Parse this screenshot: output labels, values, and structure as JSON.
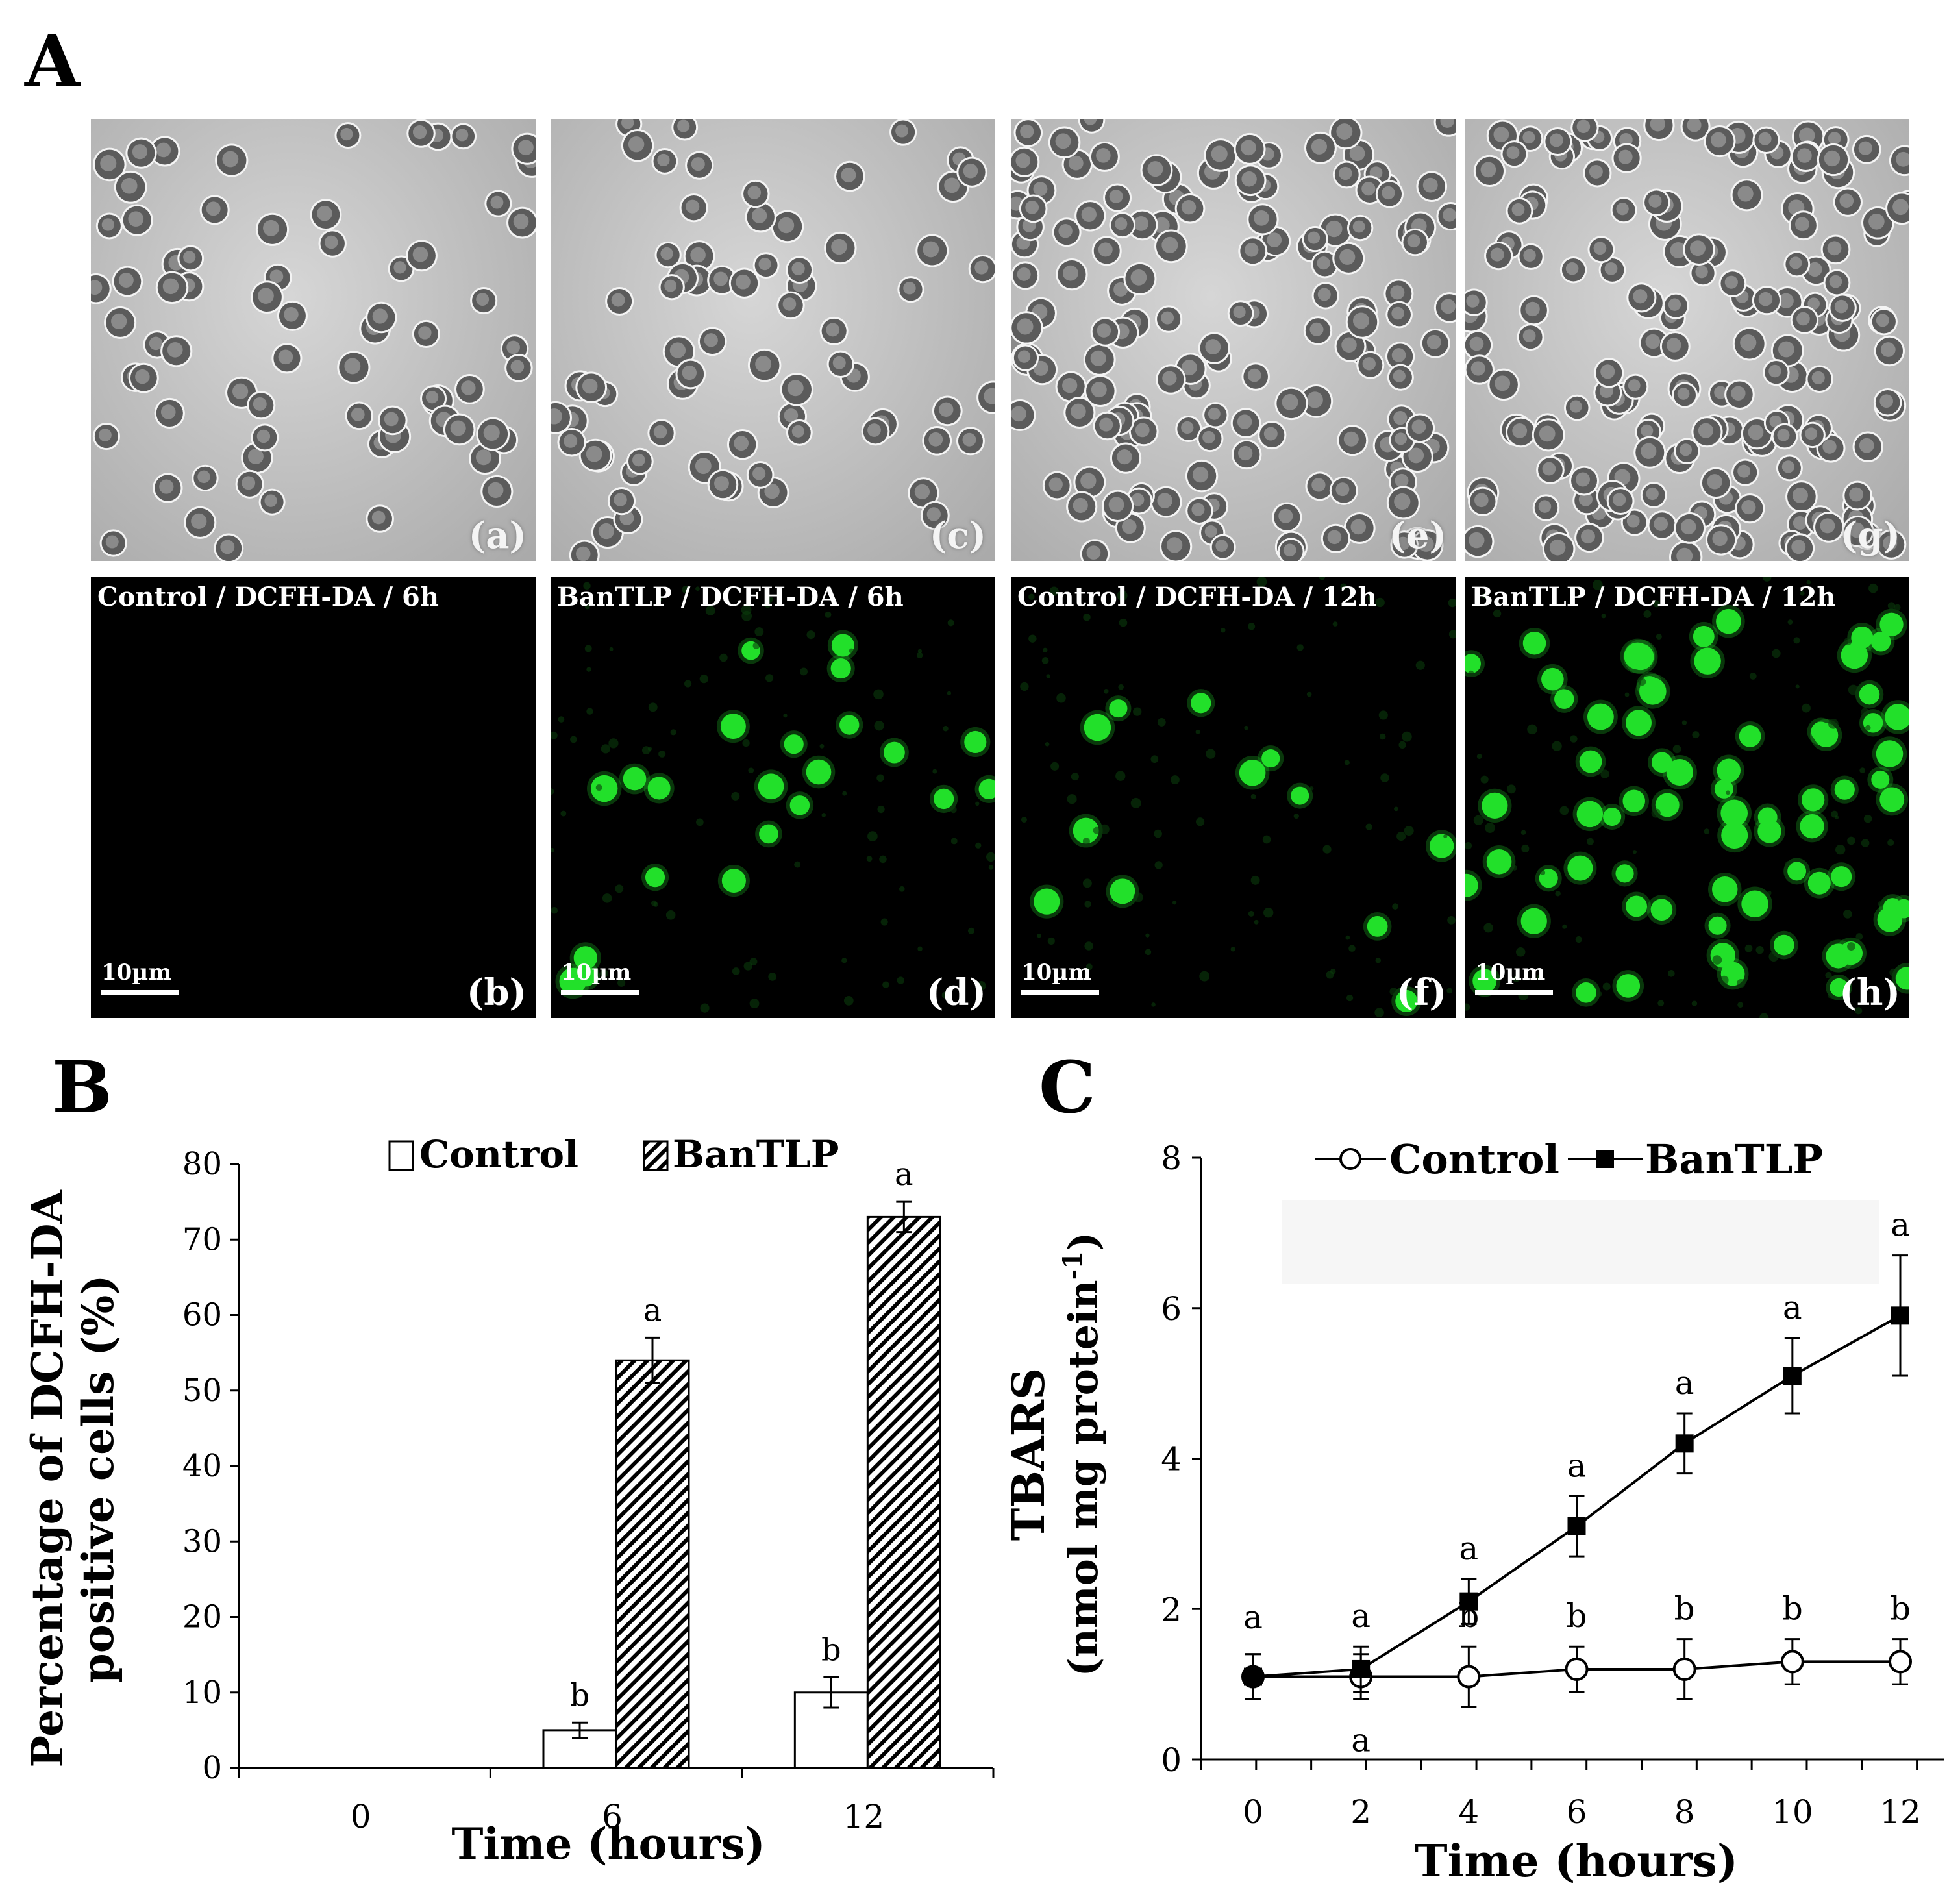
{
  "figure_labels": {
    "a": "A",
    "b": "B",
    "c": "C"
  },
  "micrographs": [
    {
      "id": "a",
      "letter": "(a)",
      "caption": "",
      "type": "brightfield"
    },
    {
      "id": "b",
      "letter": "(b)",
      "caption": "Control / DCFH-DA / 6h",
      "type": "fluorescence",
      "scalebar": "10µm"
    },
    {
      "id": "c",
      "letter": "(c)",
      "caption": "",
      "type": "brightfield"
    },
    {
      "id": "d",
      "letter": "(d)",
      "caption": "BanTLP / DCFH-DA / 6h",
      "type": "fluorescence",
      "scalebar": "10µm"
    },
    {
      "id": "e",
      "letter": "(e)",
      "caption": "",
      "type": "brightfield"
    },
    {
      "id": "f",
      "letter": "(f)",
      "caption": "Control / DCFH-DA / 12h",
      "type": "fluorescence",
      "scalebar": "10µm"
    },
    {
      "id": "g",
      "letter": "(g)",
      "caption": "",
      "type": "brightfield"
    },
    {
      "id": "h",
      "letter": "(h)",
      "caption": "BanTLP / DCFH-DA / 12h",
      "type": "fluorescence",
      "scalebar": "10µm"
    }
  ],
  "colors": {
    "fluorescent_cell": "#22e02a",
    "bar_hatch": "#000000"
  },
  "chart_data": [
    {
      "type": "bar",
      "categories": [
        "0",
        "6",
        "12"
      ],
      "series": [
        {
          "name": "Control",
          "values": [
            0,
            5,
            10
          ],
          "errors": [
            0,
            1,
            2
          ],
          "letters": [
            "",
            "b",
            "b"
          ]
        },
        {
          "name": "BanTLP",
          "values": [
            0,
            54,
            73
          ],
          "errors": [
            0,
            3,
            2
          ],
          "letters": [
            "",
            "a",
            "a"
          ]
        }
      ],
      "ylim": [
        0,
        80
      ],
      "yticks": [
        0,
        10,
        20,
        30,
        40,
        50,
        60,
        70,
        80
      ],
      "xlabel": "Time (hours)",
      "ylabel_lines": [
        "Percentage of DCFH-DA",
        "positive cells (%)"
      ],
      "legend": [
        "Control",
        "BanTLP"
      ],
      "legend_position": "top"
    },
    {
      "type": "line",
      "x": [
        0,
        2,
        4,
        6,
        8,
        10,
        12
      ],
      "series": [
        {
          "name": "Control",
          "values": [
            1.1,
            1.1,
            1.1,
            1.2,
            1.2,
            1.3,
            1.3
          ],
          "errors": [
            0.3,
            0.3,
            0.4,
            0.3,
            0.4,
            0.3,
            0.3
          ],
          "marker": "open-circle",
          "letters": [
            "",
            "a",
            "b",
            "b",
            "b",
            "b",
            "b"
          ]
        },
        {
          "name": "BanTLP",
          "values": [
            1.1,
            1.2,
            2.1,
            3.1,
            4.2,
            5.1,
            5.9
          ],
          "errors": [
            0.3,
            0.3,
            0.3,
            0.4,
            0.4,
            0.5,
            0.8
          ],
          "marker": "filled-square",
          "letters": [
            "a",
            "a",
            "a",
            "a",
            "a",
            "a",
            "a"
          ]
        }
      ],
      "ylim": [
        0,
        8
      ],
      "yticks": [
        0,
        2,
        4,
        6,
        8
      ],
      "xticks": [
        0,
        2,
        4,
        6,
        8,
        10,
        12
      ],
      "xlabel": "Time (hours)",
      "ylabel_lines": [
        "TBARS",
        "(nmol mg protein",
        "-1",
        ")"
      ],
      "legend": [
        "Control",
        "BanTLP"
      ],
      "legend_position": "top"
    }
  ]
}
